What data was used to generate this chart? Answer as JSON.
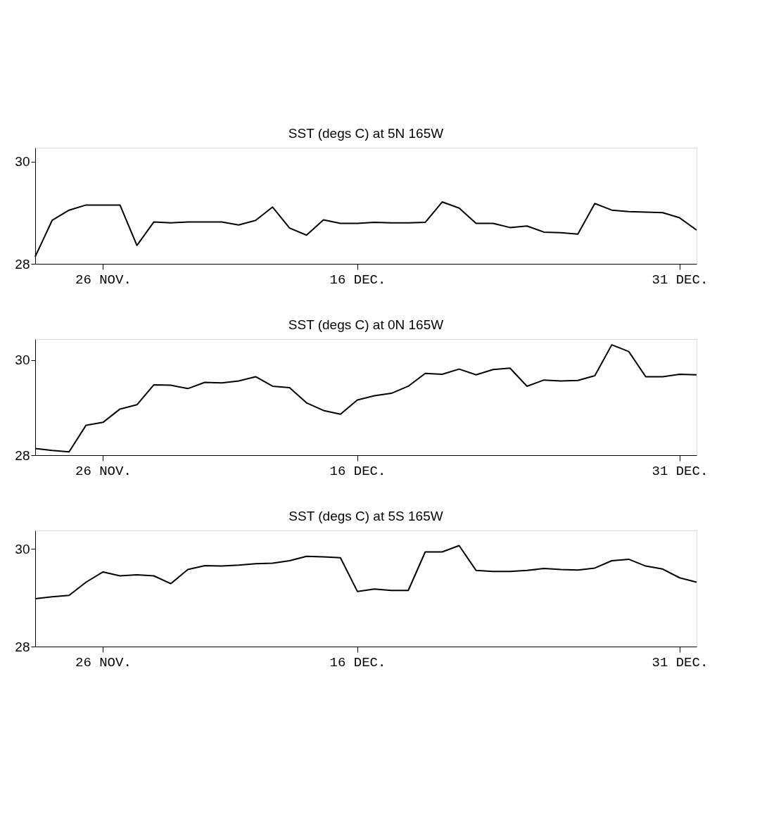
{
  "chart_data": [
    {
      "type": "line",
      "title": "SST (degs C) at 5N 165W",
      "categories": [
        null,
        null,
        null,
        null,
        "26 NOV.",
        null,
        null,
        null,
        null,
        null,
        null,
        null,
        null,
        null,
        null,
        null,
        null,
        null,
        null,
        "16 DEC.",
        null,
        null,
        null,
        null,
        null,
        null,
        null,
        null,
        null,
        null,
        null,
        null,
        null,
        null,
        null,
        null,
        null,
        null,
        "31 DEC.",
        null
      ],
      "series": [
        {
          "color": "#000000",
          "values": [
            28.14,
            28.85,
            29.05,
            29.15,
            29.15,
            29.15,
            28.36,
            28.82,
            28.8,
            28.82,
            28.82,
            28.82,
            28.76,
            28.85,
            29.11,
            28.7,
            28.56,
            28.86,
            28.79,
            28.79,
            28.81,
            28.8,
            28.8,
            28.81,
            29.21,
            29.09,
            28.79,
            28.79,
            28.71,
            28.74,
            28.62,
            28.61,
            28.58,
            29.18,
            29.05,
            29.02,
            29.01,
            29.0,
            28.9,
            28.66
          ]
        }
      ],
      "ylim": [
        28,
        30.27
      ],
      "yticks": [
        28,
        30
      ],
      "grid": false,
      "marker": "none",
      "line_style": "solid"
    },
    {
      "type": "line",
      "title": "SST (degs C) at 0N 165W",
      "categories": [
        null,
        null,
        null,
        null,
        "26 NOV.",
        null,
        null,
        null,
        null,
        null,
        null,
        null,
        null,
        null,
        null,
        null,
        null,
        null,
        null,
        "16 DEC.",
        null,
        null,
        null,
        null,
        null,
        null,
        null,
        null,
        null,
        null,
        null,
        null,
        null,
        null,
        null,
        null,
        null,
        null,
        "31 DEC.",
        null
      ],
      "series": [
        {
          "color": "#000000",
          "values": [
            28.14,
            28.1,
            28.07,
            28.63,
            28.69,
            28.97,
            29.06,
            29.48,
            29.47,
            29.4,
            29.53,
            29.52,
            29.56,
            29.65,
            29.45,
            29.42,
            29.1,
            28.94,
            28.86,
            29.16,
            29.25,
            29.3,
            29.45,
            29.72,
            29.7,
            29.81,
            29.69,
            29.8,
            29.83,
            29.45,
            29.58,
            29.56,
            29.57,
            29.67,
            30.32,
            30.18,
            29.65,
            29.65,
            29.7,
            29.69
          ]
        }
      ],
      "ylim": [
        28,
        30.44
      ],
      "yticks": [
        28,
        30
      ],
      "grid": false,
      "marker": "none",
      "line_style": "solid"
    },
    {
      "type": "line",
      "title": "SST (degs C) at 5S 165W",
      "categories": [
        null,
        null,
        null,
        null,
        "26 NOV.",
        null,
        null,
        null,
        null,
        null,
        null,
        null,
        null,
        null,
        null,
        null,
        null,
        null,
        null,
        "16 DEC.",
        null,
        null,
        null,
        null,
        null,
        null,
        null,
        null,
        null,
        null,
        null,
        null,
        null,
        null,
        null,
        null,
        null,
        null,
        "31 DEC.",
        null
      ],
      "series": [
        {
          "color": "#000000",
          "values": [
            28.98,
            29.02,
            29.05,
            29.32,
            29.53,
            29.45,
            29.47,
            29.45,
            29.29,
            29.58,
            29.66,
            29.65,
            29.67,
            29.7,
            29.71,
            29.76,
            29.85,
            29.84,
            29.82,
            29.13,
            29.18,
            29.15,
            29.15,
            29.94,
            29.94,
            30.07,
            29.56,
            29.54,
            29.54,
            29.56,
            29.6,
            29.58,
            29.57,
            29.61,
            29.76,
            29.79,
            29.65,
            29.59,
            29.41,
            29.32
          ]
        }
      ],
      "ylim": [
        28,
        30.38
      ],
      "yticks": [
        28,
        30
      ],
      "grid": false,
      "marker": "none",
      "line_style": "solid"
    }
  ]
}
